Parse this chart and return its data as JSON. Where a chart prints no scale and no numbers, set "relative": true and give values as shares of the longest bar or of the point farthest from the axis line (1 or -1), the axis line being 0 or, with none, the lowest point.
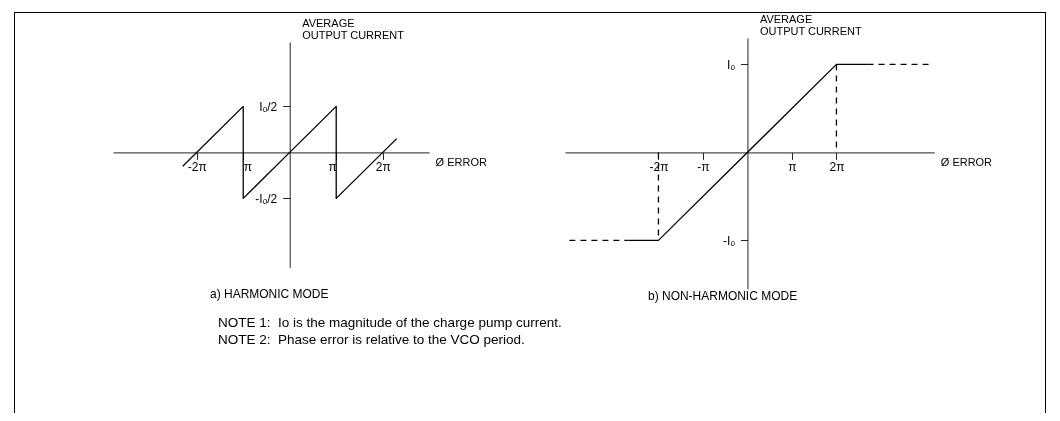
{
  "chart_data": [
    {
      "type": "line",
      "title": "a) HARMONIC MODE",
      "xlabel": "Ø ERROR",
      "ylabel": "AVERAGE OUTPUT CURRENT",
      "xlim": [
        -11.94,
        9.42
      ],
      "relative": true,
      "xticks": [
        {
          "value": -6.283,
          "label": "-2π"
        },
        {
          "value": -3.142,
          "label": "π"
        },
        {
          "value": 3.142,
          "label": "π"
        },
        {
          "value": 6.283,
          "label": "2π"
        }
      ],
      "line_style": "solid",
      "series": [
        {
          "color": "#000000",
          "x": [
            -7.23,
            -3.142,
            -3.142,
            0,
            3.142,
            3.142,
            7.23
          ],
          "values": [
            -0.3,
            1,
            -1,
            0,
            1,
            -1,
            0.3
          ]
        }
      ],
      "annotations": [
        "Iₒ/2",
        "-Iₒ/2",
        "NOTE 1:  Io is the magnitude of the charge pump current.",
        "NOTE 2:  Phase error is relative to the VCO period."
      ]
    },
    {
      "type": "line",
      "title": "b) NON-HARMONIC MODE",
      "xlabel": "Ø ERROR",
      "ylabel": "AVERAGE OUTPUT CURRENT",
      "xlim": [
        -12.88,
        13.19
      ],
      "relative": true,
      "xticks": [
        {
          "value": -6.283,
          "label": "-2π"
        },
        {
          "value": -3.142,
          "label": "-π"
        },
        {
          "value": 3.142,
          "label": "π"
        },
        {
          "value": 6.283,
          "label": "2π"
        }
      ],
      "line_style": "solid",
      "series": [
        {
          "color": "#000000",
          "x": [
            -8.48,
            -6.283,
            6.283,
            8.48
          ],
          "values": [
            -1,
            -1,
            1,
            1
          ]
        },
        {
          "color": "#000000",
          "line_style": "dashed",
          "x": [
            -12.57,
            -8.48
          ],
          "values": [
            -1,
            -1
          ]
        },
        {
          "color": "#000000",
          "line_style": "dashed",
          "x": [
            8.48,
            13.04
          ],
          "values": [
            1,
            1
          ]
        },
        {
          "color": "#000000",
          "line_style": "dashed",
          "x": [
            -6.283,
            -6.283
          ],
          "values": [
            0,
            -1
          ]
        },
        {
          "color": "#000000",
          "line_style": "dashed",
          "x": [
            6.283,
            6.283
          ],
          "values": [
            1,
            0
          ]
        }
      ],
      "annotations": [
        "Iₒ",
        "-Iₒ"
      ]
    }
  ]
}
